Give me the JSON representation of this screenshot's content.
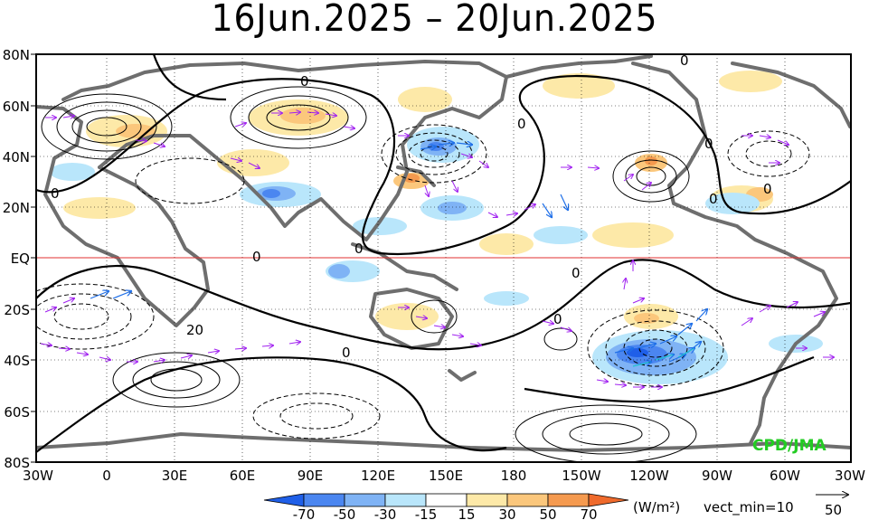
{
  "title": "16Jun.2025 – 20Jun.2025",
  "map": {
    "lat_labels": [
      "80N",
      "60N",
      "40N",
      "20N",
      "EQ",
      "20S",
      "40S",
      "60S",
      "80S"
    ],
    "lon_labels": [
      "30W",
      "0",
      "30E",
      "60E",
      "90E",
      "120E",
      "150E",
      "180",
      "150W",
      "120W",
      "90W",
      "60W",
      "30W"
    ],
    "contour_labels": [
      "0",
      "0",
      "0",
      "0",
      "0",
      "0",
      "0",
      "0",
      "0",
      "0",
      "0",
      "0",
      "20"
    ],
    "watermark": "CPD/JMA"
  },
  "colorbar": {
    "unit": "(W/m²)",
    "vect_min": "vect_min=10",
    "ref_vector": "50",
    "ticks": [
      "-70",
      "-50",
      "-30",
      "-15",
      "15",
      "30",
      "50",
      "70"
    ],
    "colors": [
      "#1f5fe8",
      "#4b86f0",
      "#7fb3f5",
      "#b9e6fb",
      "#ffffff",
      "#fde9a8",
      "#fbc77c",
      "#f59a4f",
      "#ef6a2c"
    ]
  }
}
